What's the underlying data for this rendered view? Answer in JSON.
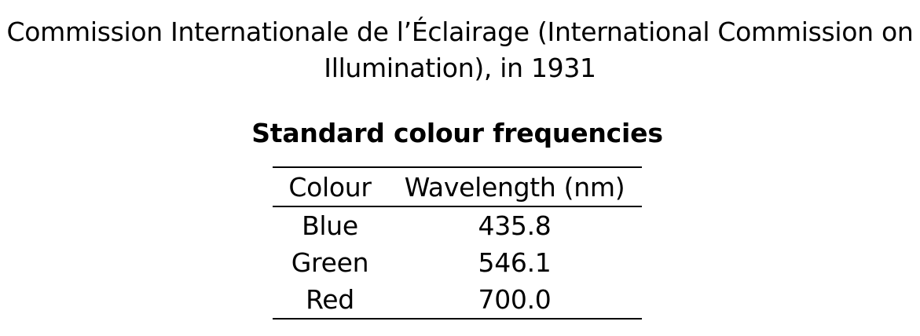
{
  "document": {
    "heading_line1": "Commission Internationale de l’Éclairage (International Commission on",
    "heading_line2": "Illumination), in 1931",
    "table_title": "Standard colour frequencies"
  },
  "table": {
    "headers": [
      "Colour",
      "Wavelength (nm)"
    ],
    "rows": [
      [
        "Blue",
        "435.8"
      ],
      [
        "Green",
        "546.1"
      ],
      [
        "Red",
        "700.0"
      ]
    ]
  }
}
